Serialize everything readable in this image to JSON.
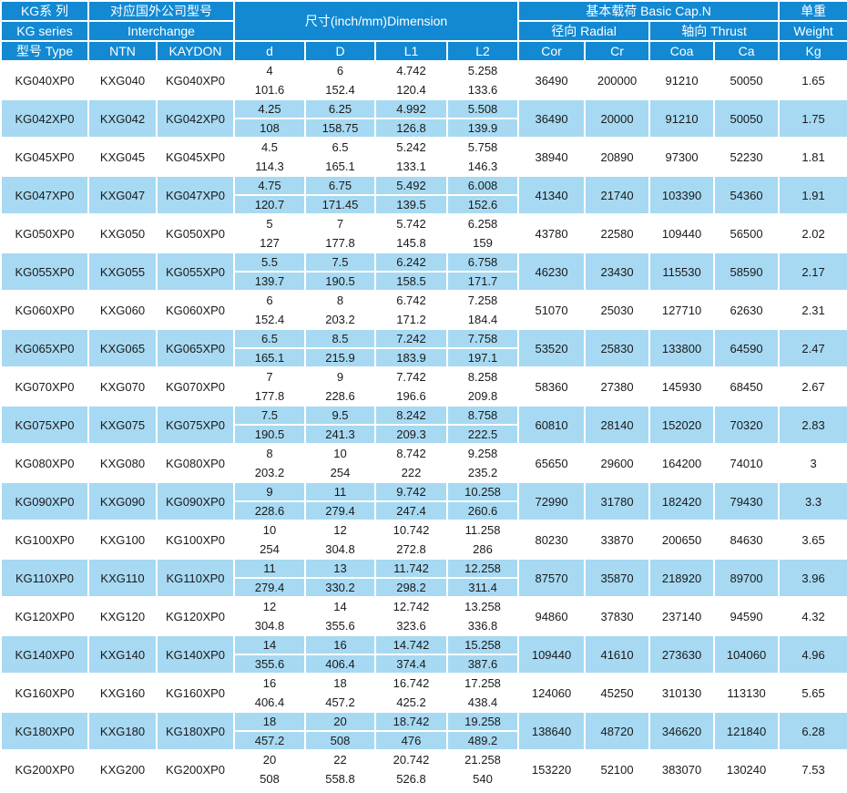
{
  "colors": {
    "header_bg": "#1289d2",
    "header_text": "#ffffff",
    "row_alt_bg": "#a7d9f2",
    "row_bg": "#ffffff",
    "body_text": "#1a1a1a"
  },
  "header": {
    "series": {
      "line1": "KG系 列",
      "line2": "KG series",
      "line3": "型号 Type"
    },
    "interchange": {
      "title": "对应国外公司型号",
      "subtitle": "Interchange",
      "ntn": "NTN",
      "kaydon": "KAYDON"
    },
    "dimension": {
      "title": "尺寸(inch/mm)Dimension",
      "cols": [
        "d",
        "D",
        "L1",
        "L2"
      ]
    },
    "capacity": {
      "title": "基本载荷 Basic Cap.N",
      "radial": "径向 Radial",
      "thrust": "轴向 Thrust",
      "cols": [
        "Cor",
        "Cr",
        "Coa",
        "Ca"
      ]
    },
    "weight": {
      "line1": "单重",
      "line2": "Weight",
      "line3": "Kg"
    }
  },
  "table": {
    "rows": [
      {
        "type": "KG040XP0",
        "ntn": "KXG040",
        "kaydon": "KG040XP0",
        "d": [
          "4",
          "101.6"
        ],
        "D": [
          "6",
          "152.4"
        ],
        "L1": [
          "4.742",
          "120.4"
        ],
        "L2": [
          "5.258",
          "133.6"
        ],
        "cor": "36490",
        "cr": "200000",
        "coa": "91210",
        "ca": "50050",
        "kg": "1.65"
      },
      {
        "type": "KG042XP0",
        "ntn": "KXG042",
        "kaydon": "KG042XP0",
        "d": [
          "4.25",
          "108"
        ],
        "D": [
          "6.25",
          "158.75"
        ],
        "L1": [
          "4.992",
          "126.8"
        ],
        "L2": [
          "5.508",
          "139.9"
        ],
        "cor": "36490",
        "cr": "20000",
        "coa": "91210",
        "ca": "50050",
        "kg": "1.75"
      },
      {
        "type": "KG045XP0",
        "ntn": "KXG045",
        "kaydon": "KG045XP0",
        "d": [
          "4.5",
          "114.3"
        ],
        "D": [
          "6.5",
          "165.1"
        ],
        "L1": [
          "5.242",
          "133.1"
        ],
        "L2": [
          "5.758",
          "146.3"
        ],
        "cor": "38940",
        "cr": "20890",
        "coa": "97300",
        "ca": "52230",
        "kg": "1.81"
      },
      {
        "type": "KG047XP0",
        "ntn": "KXG047",
        "kaydon": "KG047XP0",
        "d": [
          "4.75",
          "120.7"
        ],
        "D": [
          "6.75",
          "171.45"
        ],
        "L1": [
          "5.492",
          "139.5"
        ],
        "L2": [
          "6.008",
          "152.6"
        ],
        "cor": "41340",
        "cr": "21740",
        "coa": "103390",
        "ca": "54360",
        "kg": "1.91"
      },
      {
        "type": "KG050XP0",
        "ntn": "KXG050",
        "kaydon": "KG050XP0",
        "d": [
          "5",
          "127"
        ],
        "D": [
          "7",
          "177.8"
        ],
        "L1": [
          "5.742",
          "145.8"
        ],
        "L2": [
          "6.258",
          "159"
        ],
        "cor": "43780",
        "cr": "22580",
        "coa": "109440",
        "ca": "56500",
        "kg": "2.02"
      },
      {
        "type": "KG055XP0",
        "ntn": "KXG055",
        "kaydon": "KG055XP0",
        "d": [
          "5.5",
          "139.7"
        ],
        "D": [
          "7.5",
          "190.5"
        ],
        "L1": [
          "6.242",
          "158.5"
        ],
        "L2": [
          "6.758",
          "171.7"
        ],
        "cor": "46230",
        "cr": "23430",
        "coa": "115530",
        "ca": "58590",
        "kg": "2.17"
      },
      {
        "type": "KG060XP0",
        "ntn": "KXG060",
        "kaydon": "KG060XP0",
        "d": [
          "6",
          "152.4"
        ],
        "D": [
          "8",
          "203.2"
        ],
        "L1": [
          "6.742",
          "171.2"
        ],
        "L2": [
          "7.258",
          "184.4"
        ],
        "cor": "51070",
        "cr": "25030",
        "coa": "127710",
        "ca": "62630",
        "kg": "2.31"
      },
      {
        "type": "KG065XP0",
        "ntn": "KXG065",
        "kaydon": "KG065XP0",
        "d": [
          "6.5",
          "165.1"
        ],
        "D": [
          "8.5",
          "215.9"
        ],
        "L1": [
          "7.242",
          "183.9"
        ],
        "L2": [
          "7.758",
          "197.1"
        ],
        "cor": "53520",
        "cr": "25830",
        "coa": "133800",
        "ca": "64590",
        "kg": "2.47"
      },
      {
        "type": "KG070XP0",
        "ntn": "KXG070",
        "kaydon": "KG070XP0",
        "d": [
          "7",
          "177.8"
        ],
        "D": [
          "9",
          "228.6"
        ],
        "L1": [
          "7.742",
          "196.6"
        ],
        "L2": [
          "8.258",
          "209.8"
        ],
        "cor": "58360",
        "cr": "27380",
        "coa": "145930",
        "ca": "68450",
        "kg": "2.67"
      },
      {
        "type": "KG075XP0",
        "ntn": "KXG075",
        "kaydon": "KG075XP0",
        "d": [
          "7.5",
          "190.5"
        ],
        "D": [
          "9.5",
          "241.3"
        ],
        "L1": [
          "8.242",
          "209.3"
        ],
        "L2": [
          "8.758",
          "222.5"
        ],
        "cor": "60810",
        "cr": "28140",
        "coa": "152020",
        "ca": "70320",
        "kg": "2.83"
      },
      {
        "type": "KG080XP0",
        "ntn": "KXG080",
        "kaydon": "KG080XP0",
        "d": [
          "8",
          "203.2"
        ],
        "D": [
          "10",
          "254"
        ],
        "L1": [
          "8.742",
          "222"
        ],
        "L2": [
          "9.258",
          "235.2"
        ],
        "cor": "65650",
        "cr": "29600",
        "coa": "164200",
        "ca": "74010",
        "kg": "3"
      },
      {
        "type": "KG090XP0",
        "ntn": "KXG090",
        "kaydon": "KG090XP0",
        "d": [
          "9",
          "228.6"
        ],
        "D": [
          "11",
          "279.4"
        ],
        "L1": [
          "9.742",
          "247.4"
        ],
        "L2": [
          "10.258",
          "260.6"
        ],
        "cor": "72990",
        "cr": "31780",
        "coa": "182420",
        "ca": "79430",
        "kg": "3.3"
      },
      {
        "type": "KG100XP0",
        "ntn": "KXG100",
        "kaydon": "KG100XP0",
        "d": [
          "10",
          "254"
        ],
        "D": [
          "12",
          "304.8"
        ],
        "L1": [
          "10.742",
          "272.8"
        ],
        "L2": [
          "11.258",
          "286"
        ],
        "cor": "80230",
        "cr": "33870",
        "coa": "200650",
        "ca": "84630",
        "kg": "3.65"
      },
      {
        "type": "KG110XP0",
        "ntn": "KXG110",
        "kaydon": "KG110XP0",
        "d": [
          "11",
          "279.4"
        ],
        "D": [
          "13",
          "330.2"
        ],
        "L1": [
          "11.742",
          "298.2"
        ],
        "L2": [
          "12.258",
          "311.4"
        ],
        "cor": "87570",
        "cr": "35870",
        "coa": "218920",
        "ca": "89700",
        "kg": "3.96"
      },
      {
        "type": "KG120XP0",
        "ntn": "KXG120",
        "kaydon": "KG120XP0",
        "d": [
          "12",
          "304.8"
        ],
        "D": [
          "14",
          "355.6"
        ],
        "L1": [
          "12.742",
          "323.6"
        ],
        "L2": [
          "13.258",
          "336.8"
        ],
        "cor": "94860",
        "cr": "37830",
        "coa": "237140",
        "ca": "94590",
        "kg": "4.32"
      },
      {
        "type": "KG140XP0",
        "ntn": "KXG140",
        "kaydon": "KG140XP0",
        "d": [
          "14",
          "355.6"
        ],
        "D": [
          "16",
          "406.4"
        ],
        "L1": [
          "14.742",
          "374.4"
        ],
        "L2": [
          "15.258",
          "387.6"
        ],
        "cor": "109440",
        "cr": "41610",
        "coa": "273630",
        "ca": "104060",
        "kg": "4.96"
      },
      {
        "type": "KG160XP0",
        "ntn": "KXG160",
        "kaydon": "KG160XP0",
        "d": [
          "16",
          "406.4"
        ],
        "D": [
          "18",
          "457.2"
        ],
        "L1": [
          "16.742",
          "425.2"
        ],
        "L2": [
          "17.258",
          "438.4"
        ],
        "cor": "124060",
        "cr": "45250",
        "coa": "310130",
        "ca": "113130",
        "kg": "5.65"
      },
      {
        "type": "KG180XP0",
        "ntn": "KXG180",
        "kaydon": "KG180XP0",
        "d": [
          "18",
          "457.2"
        ],
        "D": [
          "20",
          "508"
        ],
        "L1": [
          "18.742",
          "476"
        ],
        "L2": [
          "19.258",
          "489.2"
        ],
        "cor": "138640",
        "cr": "48720",
        "coa": "346620",
        "ca": "121840",
        "kg": "6.28"
      },
      {
        "type": "KG200XP0",
        "ntn": "KXG200",
        "kaydon": "KG200XP0",
        "d": [
          "20",
          "508"
        ],
        "D": [
          "22",
          "558.8"
        ],
        "L1": [
          "20.742",
          "526.8"
        ],
        "L2": [
          "21.258",
          "540"
        ],
        "cor": "153220",
        "cr": "52100",
        "coa": "383070",
        "ca": "130240",
        "kg": "7.53"
      }
    ]
  }
}
